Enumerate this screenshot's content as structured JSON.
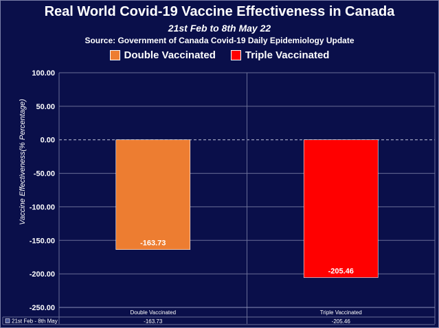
{
  "chart_data": {
    "type": "bar",
    "title": "Real World Covid-19 Vaccine Effectiveness in Canada",
    "subtitle": "21st Feb to 8th May 22",
    "source": "Source: Government of Canada Covid-19 Daily Epidemiology Update",
    "ylabel": "Vaccine Effectiveness(% Percentage)",
    "xlabel": "",
    "ylim": [
      -250,
      100
    ],
    "yticks": [
      "100.00",
      "50.00",
      "0.00",
      "-50.00",
      "-100.00",
      "-150.00",
      "-200.00",
      "-250.00"
    ],
    "ytick_values": [
      100,
      50,
      0,
      -50,
      -100,
      -150,
      -200,
      -250
    ],
    "categories": [
      "Double Vaccinated",
      "Triple Vaccinated"
    ],
    "values": [
      -163.73,
      -205.46
    ],
    "value_labels": [
      "-163.73",
      "-205.46"
    ],
    "bar_colors": [
      "#ed7d31",
      "#ff0000"
    ],
    "legend": [
      {
        "label": "Double Vaccinated",
        "color": "#ed7d31"
      },
      {
        "label": "Triple Vaccinated",
        "color": "#ff0000"
      }
    ],
    "legend_position": "top",
    "grid": true,
    "zero_line": "dashed",
    "data_table": {
      "row_label": "21st Feb - 8th May",
      "values": [
        "-163.73",
        "-205.46"
      ]
    }
  }
}
